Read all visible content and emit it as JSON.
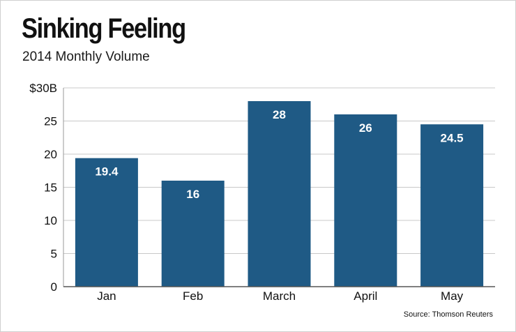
{
  "chart_data": {
    "type": "bar",
    "title": "Sinking Feeling",
    "subtitle": "2014 Monthly Volume",
    "categories": [
      "Jan",
      "Feb",
      "March",
      "April",
      "May"
    ],
    "values": [
      19.4,
      16,
      28,
      26,
      24.5
    ],
    "value_labels": [
      "19.4",
      "16",
      "28",
      "26",
      "24.5"
    ],
    "yticks": [
      0,
      5,
      10,
      15,
      20,
      25,
      30
    ],
    "ytick_labels": [
      "0",
      "5",
      "10",
      "15",
      "20",
      "25",
      "$30B"
    ],
    "ylim": [
      0,
      30
    ],
    "xlabel": "",
    "ylabel": "",
    "grid": true,
    "bar_color": "#1f5a85",
    "source": "Source: Thomson Reuters"
  }
}
